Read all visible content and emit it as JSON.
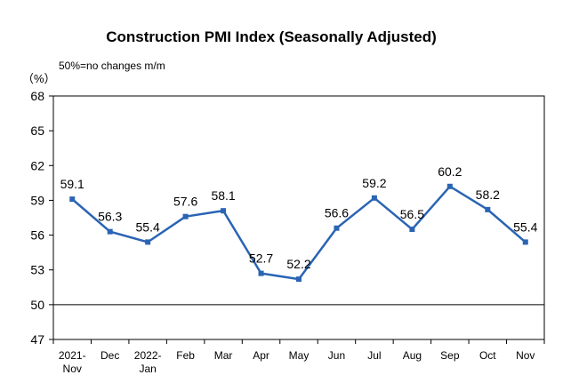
{
  "chart_data": {
    "type": "line",
    "title": "Construction PMI Index (Seasonally Adjusted)",
    "unit_label": "（%）",
    "note": "50%=no changes m/m",
    "categories": [
      "2021-\nNov",
      "Dec",
      "2022-\nJan",
      "Feb",
      "Mar",
      "Apr",
      "May",
      "Jun",
      "Jul",
      "Aug",
      "Sep",
      "Oct",
      "Nov"
    ],
    "series": [
      {
        "values": [
          59.1,
          56.3,
          55.4,
          57.6,
          58.1,
          52.7,
          52.2,
          56.6,
          59.2,
          56.5,
          60.2,
          58.2,
          55.4
        ]
      }
    ],
    "yticks": [
      47,
      50,
      53,
      56,
      59,
      62,
      65,
      68
    ],
    "ylim": [
      47,
      68
    ],
    "reference_line": 50,
    "line_color": "#2a64b4",
    "grid": false
  }
}
